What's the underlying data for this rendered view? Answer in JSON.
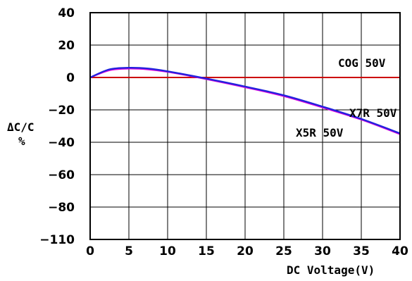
{
  "chart_data": {
    "type": "line",
    "title": "",
    "xlabel": "DC Voltage(V)",
    "ylabel": "ΔC/C",
    "ylabel_unit": "%",
    "xlim": [
      0,
      40
    ],
    "ylim": [
      -110,
      40
    ],
    "x_ticks": [
      0,
      5,
      10,
      15,
      20,
      25,
      30,
      35,
      40
    ],
    "y_ticks": [
      -110,
      -80,
      -60,
      -40,
      -20,
      0,
      20,
      40
    ],
    "grid": true,
    "series": [
      {
        "name": "COG 50V",
        "color": "#cc0000",
        "x": [
          0,
          40
        ],
        "y": [
          0,
          0
        ]
      },
      {
        "name": "X7R 50V",
        "color": "#e000e0",
        "x": [
          0,
          2.5,
          5,
          7.5,
          10,
          15,
          20,
          25,
          30,
          35,
          40
        ],
        "y": [
          0,
          4.5,
          5.5,
          5,
          3.5,
          -1,
          -6,
          -11.5,
          -18.5,
          -26,
          -35
        ]
      },
      {
        "name": "X5R 50V",
        "color": "#2222dd",
        "x": [
          0,
          2.5,
          5,
          7.5,
          10,
          15,
          20,
          25,
          30,
          35,
          40
        ],
        "y": [
          0,
          5,
          6,
          5.5,
          3.8,
          -0.7,
          -5.6,
          -11,
          -18,
          -25.6,
          -34.5
        ]
      }
    ]
  }
}
